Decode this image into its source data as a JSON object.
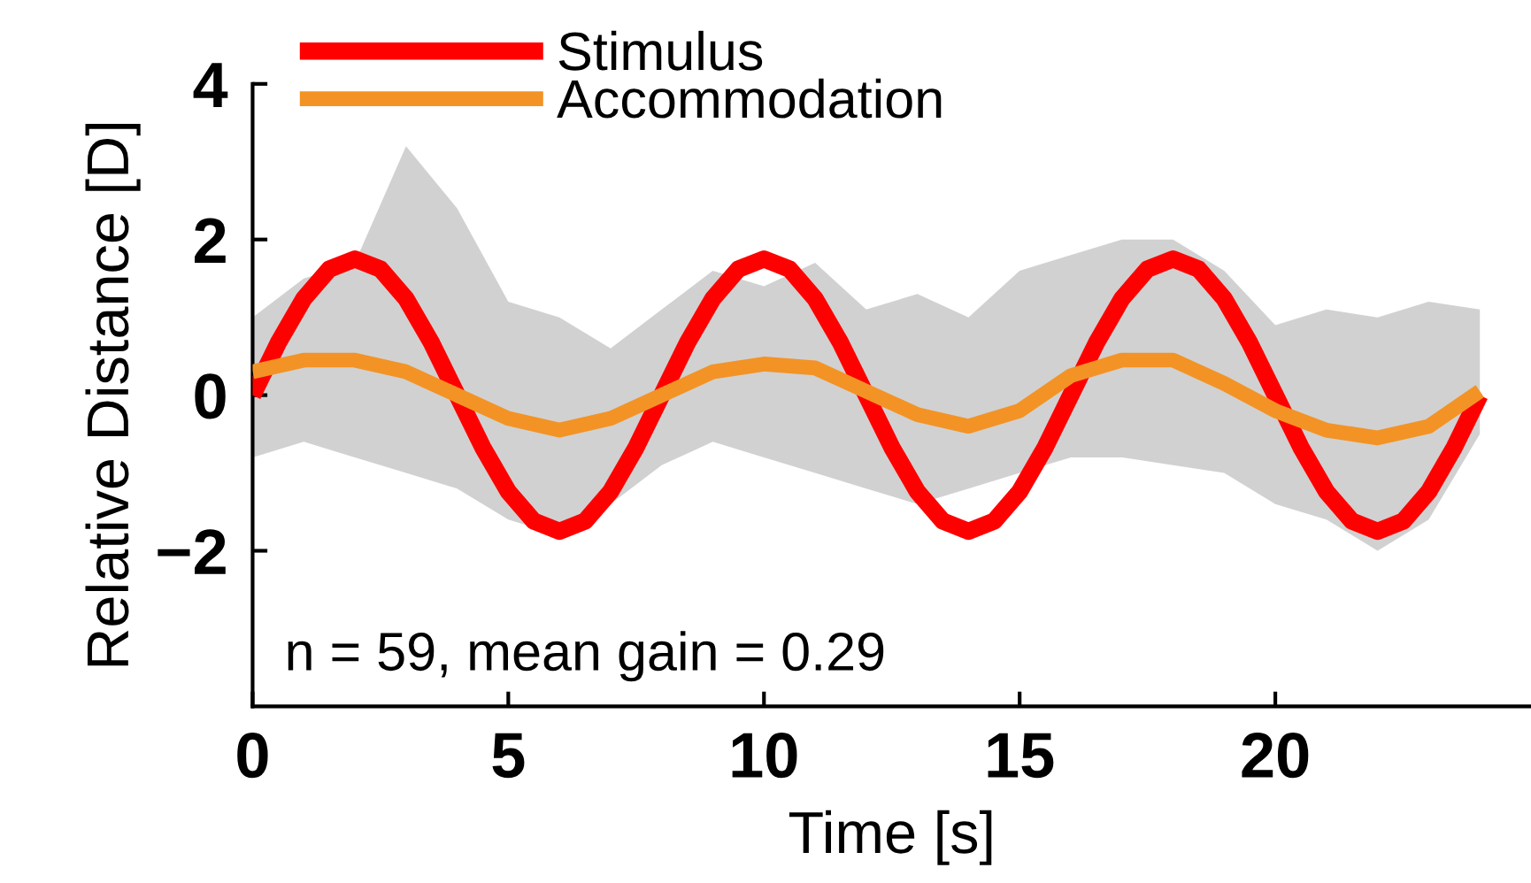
{
  "chart_data": {
    "type": "line",
    "xlabel": "Time [s]",
    "ylabel": "Relative Distance [D]",
    "xlim": [
      0,
      25
    ],
    "xticks": [
      0,
      5,
      10,
      15,
      20
    ],
    "ylim": [
      -4,
      4
    ],
    "yticks": [
      {
        "value": -2,
        "label": "−2"
      },
      0,
      2,
      4
    ],
    "grid": false,
    "legend": "top",
    "marker": "none",
    "line_style": "solid",
    "annotations": [
      "n = 59, mean gain = 0.29"
    ],
    "series": [
      {
        "name": "Stimulus",
        "color": "#ff0000",
        "x": [
          0,
          0.5,
          1,
          1.5,
          2,
          2.5,
          3,
          3.5,
          4,
          4.5,
          5,
          5.5,
          6,
          6.5,
          7,
          7.5,
          8,
          8.5,
          9,
          9.5,
          10,
          10.5,
          11,
          11.5,
          12,
          12.5,
          13,
          13.5,
          14,
          14.5,
          15,
          15.5,
          16,
          16.5,
          17,
          17.5,
          18,
          18.5,
          19,
          19.5,
          20,
          20.5,
          21,
          21.5,
          22,
          22.5,
          23,
          23.5,
          24
        ],
        "values": [
          0,
          0.67,
          1.24,
          1.62,
          1.75,
          1.62,
          1.24,
          0.67,
          0,
          -0.67,
          -1.24,
          -1.62,
          -1.75,
          -1.62,
          -1.24,
          -0.67,
          0,
          0.67,
          1.24,
          1.62,
          1.75,
          1.62,
          1.24,
          0.67,
          0,
          -0.67,
          -1.24,
          -1.62,
          -1.75,
          -1.62,
          -1.24,
          -0.67,
          0,
          0.67,
          1.24,
          1.62,
          1.75,
          1.62,
          1.24,
          0.67,
          0,
          -0.67,
          -1.24,
          -1.62,
          -1.75,
          -1.62,
          -1.24,
          -0.67,
          0
        ]
      },
      {
        "name": "Accommodation",
        "color": "#f39325",
        "x": [
          0,
          1,
          2,
          3,
          4,
          5,
          6,
          7,
          8,
          9,
          10,
          11,
          12,
          13,
          14,
          15,
          16,
          17,
          18,
          19,
          20,
          21,
          22,
          23,
          24
        ],
        "values": [
          0.3,
          0.45,
          0.45,
          0.3,
          0.0,
          -0.3,
          -0.45,
          -0.3,
          0.0,
          0.3,
          0.4,
          0.35,
          0.05,
          -0.25,
          -0.4,
          -0.2,
          0.25,
          0.45,
          0.45,
          0.15,
          -0.2,
          -0.45,
          -0.55,
          -0.4,
          0.05
        ],
        "lower": [
          -0.8,
          -0.6,
          -0.8,
          -1.0,
          -1.2,
          -1.6,
          -1.8,
          -1.4,
          -0.9,
          -0.6,
          -0.8,
          -1.0,
          -1.2,
          -1.4,
          -1.2,
          -1.0,
          -0.8,
          -0.8,
          -0.9,
          -1.0,
          -1.4,
          -1.6,
          -2.0,
          -1.6,
          -0.5
        ],
        "upper": [
          1.0,
          1.5,
          1.7,
          3.2,
          2.4,
          1.2,
          1.0,
          0.6,
          1.1,
          1.6,
          1.4,
          1.7,
          1.1,
          1.3,
          1.0,
          1.6,
          1.8,
          2.0,
          2.0,
          1.6,
          0.9,
          1.1,
          1.0,
          1.2,
          1.1
        ]
      }
    ]
  }
}
